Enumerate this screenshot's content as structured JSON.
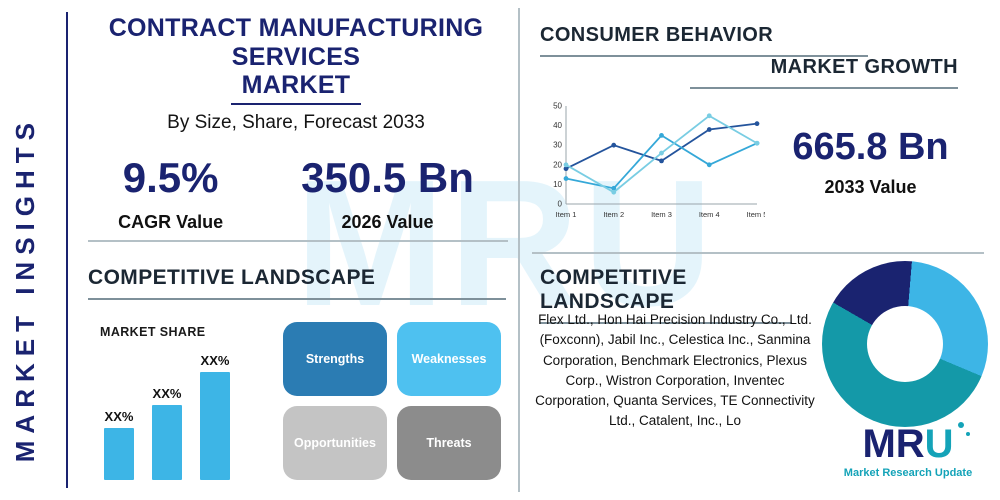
{
  "colors": {
    "navy": "#1a2370",
    "sky": "#3db5e6",
    "teal": "#1499a8",
    "divider": "#b4c0c6"
  },
  "sidebar": {
    "label": "MARKET INSIGHTS"
  },
  "header": {
    "title_line1": "CONTRACT MANUFACTURING SERVICES",
    "title_line2": "MARKET",
    "subtitle": "By Size, Share, Forecast 2033",
    "stats": [
      {
        "value": "9.5%",
        "label": "CAGR Value"
      },
      {
        "value": "350.5 Bn",
        "label": "2026 Value"
      }
    ]
  },
  "consumer_behavior": {
    "title": "CONSUMER BEHAVIOR",
    "subtitle": "MARKET GROWTH",
    "stat_value": "665.8 Bn",
    "stat_label": "2033 Value"
  },
  "competitive_left": {
    "title": "COMPETITIVE LANDSCAPE",
    "chart_label": "MARKET SHARE",
    "swot": [
      {
        "label": "Strengths",
        "color": "#2b7cb3"
      },
      {
        "label": "Weaknesses",
        "color": "#4ec1f0"
      },
      {
        "label": "Opportunities",
        "color": "#c4c4c4"
      },
      {
        "label": "Threats",
        "color": "#8c8c8c"
      }
    ]
  },
  "competitive_right": {
    "title": "COMPETITIVE LANDSCAPE",
    "companies": "Flex Ltd., Hon Hai Precision Industry Co., Ltd. (Foxconn), Jabil Inc., Celestica Inc., Sanmina Corporation, Benchmark Electronics, Plexus Corp., Wistron Corporation, Inventec Corporation, Quanta Services, TE Connectivity Ltd., Catalent, Inc., Lo"
  },
  "logo": {
    "text_mr": "MR",
    "text_u": "U",
    "tagline": "Market Research Update"
  },
  "watermark": "MRU",
  "chart_data": [
    {
      "id": "market-growth-line",
      "type": "line",
      "title": "Market Growth",
      "categories": [
        "Item 1",
        "Item 2",
        "Item 3",
        "Item 4",
        "Item 5"
      ],
      "series": [
        {
          "name": "series-navy",
          "color": "#24549c",
          "values": [
            18,
            30,
            22,
            38,
            41
          ]
        },
        {
          "name": "series-sky",
          "color": "#35a8d8",
          "values": [
            13,
            8,
            35,
            20,
            31
          ]
        },
        {
          "name": "series-light",
          "color": "#79cde3",
          "values": [
            20,
            6,
            26,
            45,
            31
          ]
        }
      ],
      "ylim": [
        0,
        50
      ],
      "yticks": [
        0,
        10,
        20,
        30,
        40,
        50
      ],
      "grid": false,
      "legend": "none"
    },
    {
      "id": "market-share-bars",
      "type": "bar",
      "title": "MARKET SHARE",
      "labels": [
        "XX%",
        "XX%",
        "XX%"
      ],
      "values": [
        24,
        35,
        50
      ],
      "ylim": [
        0,
        52
      ],
      "color": "#3db5e6"
    },
    {
      "id": "segment-donut",
      "type": "donut",
      "slices": [
        {
          "name": "navy-slice",
          "value": 18,
          "color": "#1a2370"
        },
        {
          "name": "sky-slice",
          "value": 30,
          "color": "#3db5e6"
        },
        {
          "name": "teal-slice",
          "value": 52,
          "color": "#1499a8"
        }
      ]
    }
  ]
}
